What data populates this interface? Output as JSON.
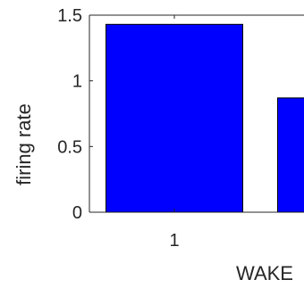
{
  "chart_data": {
    "type": "bar",
    "categories": [
      "1",
      ""
    ],
    "values": [
      1.43,
      0.87
    ],
    "xlabel": "WAKE",
    "ylabel": "firing rate",
    "ylim": [
      0,
      1.5
    ],
    "yticks": [
      0,
      0.5,
      1,
      1.5
    ],
    "ytick_labels": [
      "0",
      "0.5",
      "1",
      "1.5"
    ],
    "xtick_labels": [
      "1"
    ],
    "bar_color": "#0000FF",
    "edge_color": "#000000",
    "grid": false,
    "legend": "none"
  }
}
